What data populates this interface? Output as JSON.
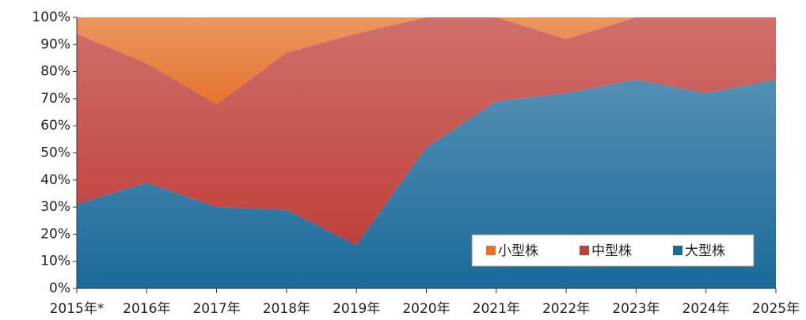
{
  "chart_data": {
    "type": "stacked_area",
    "categories": [
      "2015年*",
      "2016年",
      "2017年",
      "2018年",
      "2019年",
      "2020年",
      "2021年",
      "2022年",
      "2023年",
      "2024年",
      "2025年"
    ],
    "series": [
      {
        "name": "大型株",
        "color": "#1b6a9a",
        "values": [
          31,
          39,
          30,
          29,
          16,
          52,
          69,
          72,
          77,
          72,
          77
        ]
      },
      {
        "name": "中型株",
        "color": "#c0403a",
        "values": [
          63,
          44,
          38,
          58,
          78,
          48,
          31,
          20,
          23,
          28,
          23
        ]
      },
      {
        "name": "小型株",
        "color": "#e5732c",
        "values": [
          6,
          17,
          32,
          13,
          6,
          0,
          0,
          8,
          0,
          0,
          0
        ]
      }
    ],
    "ylim": [
      0,
      100
    ],
    "yticks": [
      {
        "value": 0,
        "label": "0%"
      },
      {
        "value": 10,
        "label": "10%"
      },
      {
        "value": 20,
        "label": "20%"
      },
      {
        "value": 30,
        "label": "30%"
      },
      {
        "value": 40,
        "label": "40%"
      },
      {
        "value": 50,
        "label": "50%"
      },
      {
        "value": 60,
        "label": "60%"
      },
      {
        "value": 70,
        "label": "70%"
      },
      {
        "value": 80,
        "label": "80%"
      },
      {
        "value": 90,
        "label": "90%"
      },
      {
        "value": 100,
        "label": "100%"
      }
    ],
    "legend": "lower right"
  }
}
